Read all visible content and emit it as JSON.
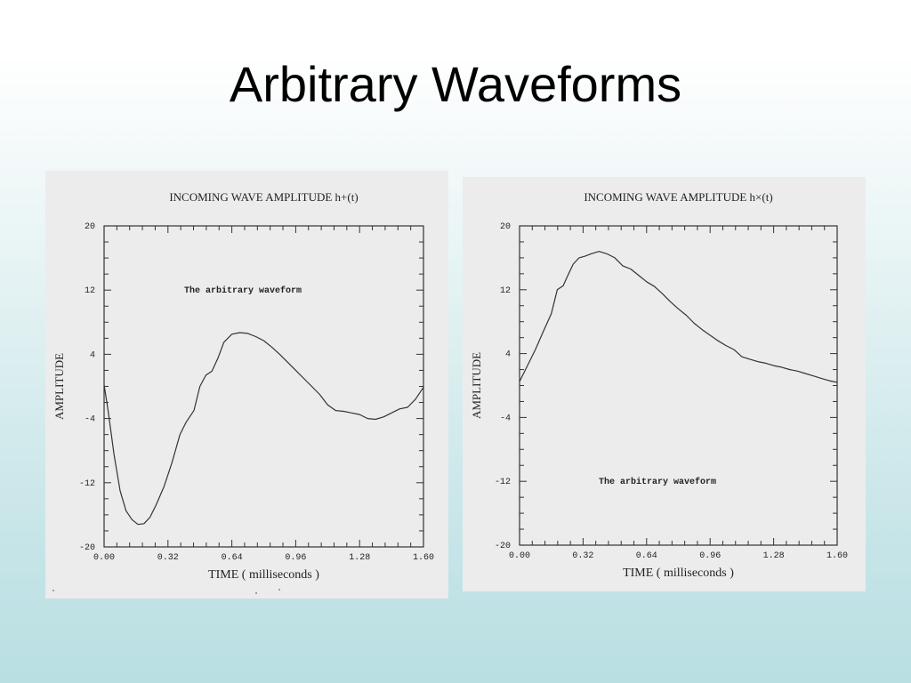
{
  "slide": {
    "title": "Arbitrary Waveforms"
  },
  "chart_data": [
    {
      "type": "line",
      "title": "INCOMING WAVE AMPLITUDE h+(t)",
      "annotation": "The arbitrary waveform",
      "xlabel": "TIME ( milliseconds )",
      "ylabel": "AMPLITUDE",
      "xlim": [
        0.0,
        1.6
      ],
      "ylim": [
        -20,
        20
      ],
      "xticks": [
        "0.00",
        "0.32",
        "0.64",
        "0.96",
        "1.28",
        "1.60"
      ],
      "yticks": [
        "20",
        "12",
        "4",
        "-4",
        "-12",
        "-20"
      ],
      "grid": false,
      "series": [
        {
          "x": [
            0.0,
            0.02,
            0.05,
            0.08,
            0.11,
            0.14,
            0.17,
            0.2,
            0.23,
            0.26,
            0.3,
            0.34,
            0.38,
            0.41,
            0.45,
            0.48,
            0.51,
            0.54,
            0.57,
            0.6,
            0.64,
            0.68,
            0.72,
            0.76,
            0.8,
            0.84,
            0.88,
            0.92,
            0.96,
            1.0,
            1.04,
            1.08,
            1.12,
            1.16,
            1.2,
            1.24,
            1.28,
            1.32,
            1.36,
            1.4,
            1.44,
            1.48,
            1.52,
            1.56,
            1.6
          ],
          "values": [
            0.2,
            -3.0,
            -8.5,
            -13.0,
            -15.5,
            -16.6,
            -17.2,
            -17.1,
            -16.3,
            -14.8,
            -12.5,
            -9.5,
            -6.0,
            -4.5,
            -3.0,
            0.0,
            1.4,
            1.9,
            3.5,
            5.5,
            6.5,
            6.7,
            6.6,
            6.2,
            5.7,
            4.9,
            4.0,
            3.0,
            2.0,
            1.0,
            0.0,
            -1.0,
            -2.3,
            -3.0,
            -3.1,
            -3.3,
            -3.5,
            -4.0,
            -4.1,
            -3.8,
            -3.3,
            -2.8,
            -2.6,
            -1.6,
            -0.1
          ]
        }
      ]
    },
    {
      "type": "line",
      "title": "INCOMING WAVE AMPLITUDE h×(t)",
      "annotation": "The arbitrary waveform",
      "xlabel": "TIME ( milliseconds )",
      "ylabel": "AMPLITUDE",
      "xlim": [
        0.0,
        1.6
      ],
      "ylim": [
        -20,
        20
      ],
      "xticks": [
        "0.00",
        "0.32",
        "0.64",
        "0.96",
        "1.28",
        "1.60"
      ],
      "yticks": [
        "20",
        "12",
        "4",
        "-4",
        "-12",
        "-20"
      ],
      "grid": false,
      "series": [
        {
          "x": [
            0.0,
            0.04,
            0.08,
            0.12,
            0.16,
            0.19,
            0.22,
            0.24,
            0.27,
            0.3,
            0.33,
            0.36,
            0.4,
            0.44,
            0.48,
            0.52,
            0.56,
            0.6,
            0.64,
            0.68,
            0.72,
            0.76,
            0.8,
            0.84,
            0.88,
            0.92,
            0.96,
            1.0,
            1.04,
            1.08,
            1.12,
            1.16,
            1.2,
            1.24,
            1.28,
            1.32,
            1.36,
            1.4,
            1.44,
            1.48,
            1.52,
            1.56,
            1.6
          ],
          "values": [
            0.5,
            2.5,
            4.5,
            6.8,
            9.0,
            12.0,
            12.5,
            13.6,
            15.2,
            16.0,
            16.2,
            16.5,
            16.8,
            16.5,
            16.0,
            15.0,
            14.6,
            13.8,
            13.0,
            12.4,
            11.5,
            10.5,
            9.6,
            8.8,
            7.8,
            7.0,
            6.3,
            5.6,
            5.0,
            4.5,
            3.6,
            3.3,
            3.0,
            2.8,
            2.5,
            2.3,
            2.0,
            1.8,
            1.5,
            1.2,
            0.9,
            0.6,
            0.4
          ]
        }
      ]
    }
  ]
}
